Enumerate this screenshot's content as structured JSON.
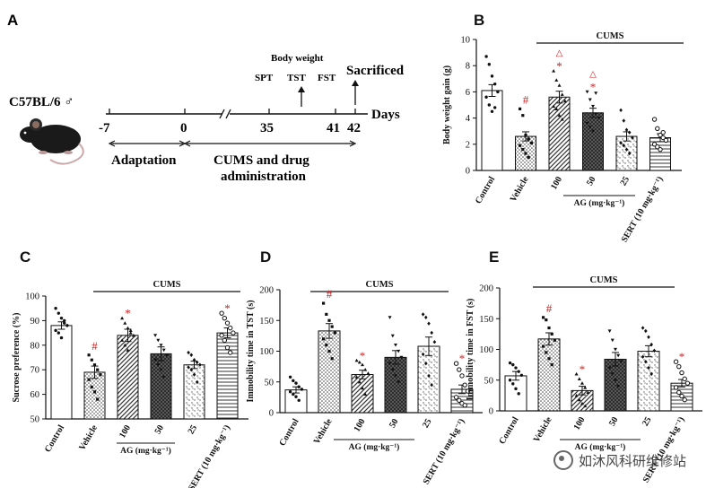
{
  "panel_a": {
    "letter": "A",
    "strain": "C57BL/6 ♂",
    "ticks": [
      "-7",
      "0",
      "35",
      "41",
      "42"
    ],
    "days_label": "Days",
    "body_weight": "Body weight",
    "tests": [
      "SPT",
      "TST",
      "FST"
    ],
    "sacrificed": "Sacrificed",
    "adaptation": "Adaptation",
    "cums_line1": "CUMS and drug",
    "cums_line2": "administration"
  },
  "shared": {
    "cums": "CUMS",
    "ag_label": "AG (mg·kg⁻¹)",
    "sig_hash": "#",
    "sig_star": "*",
    "sig_tri": "△",
    "colors": {
      "red": "#cc2222",
      "ink": "#111111"
    }
  },
  "chart_data": [
    {
      "panel": "B",
      "type": "bar",
      "categories": [
        "Control",
        "Vehicle",
        "100",
        "50",
        "25",
        "SERT (10 mg·kg⁻¹)"
      ],
      "values": [
        6.1,
        2.6,
        5.6,
        4.4,
        2.6,
        2.5
      ],
      "errors": [
        0.45,
        0.35,
        0.45,
        0.35,
        0.35,
        0.3
      ],
      "ylabel": "Body weight gain (g)",
      "ylim": [
        0,
        10
      ],
      "yticks": [
        0,
        2,
        4,
        6,
        8,
        10
      ],
      "sig": [
        "",
        "#",
        "△*",
        "△*",
        "",
        ""
      ],
      "points": [
        [
          8.7,
          8.1,
          7.2,
          6.6,
          6.0,
          5.6,
          5.0,
          4.5,
          4.8
        ],
        [
          4.7,
          4.2,
          2.7,
          2.4,
          2.1,
          1.9,
          1.6,
          1.3,
          1.0
        ],
        [
          7.6,
          6.9,
          6.5,
          5.8,
          5.3,
          4.9,
          4.7,
          4.2,
          3.9
        ],
        [
          6.0,
          5.4,
          4.9,
          4.3,
          4.0,
          3.6,
          3.3,
          3.0,
          5.9
        ],
        [
          4.6,
          3.8,
          3.1,
          2.9,
          2.5,
          2.1,
          1.9,
          1.6,
          1.3
        ],
        [
          3.9,
          3.2,
          2.7,
          2.5,
          2.3,
          2.0,
          1.8,
          1.6,
          2.9
        ]
      ]
    },
    {
      "panel": "C",
      "type": "bar",
      "categories": [
        "Control",
        "Vehicle",
        "100",
        "50",
        "25",
        "SERT (10 mg·kg⁻¹)"
      ],
      "values": [
        88,
        69,
        84,
        76.5,
        72,
        85
      ],
      "errors": [
        1.5,
        2.5,
        2.5,
        2.8,
        1.5,
        2.0
      ],
      "ylabel": "Sucrose preference (%)",
      "ylim": [
        50,
        100
      ],
      "yticks": [
        50,
        60,
        70,
        80,
        90,
        100
      ],
      "sig": [
        "",
        "#",
        "*",
        "",
        "",
        "*"
      ],
      "points": [
        [
          95,
          93,
          91,
          89,
          88,
          86,
          85,
          83,
          90
        ],
        [
          76,
          74,
          72,
          70,
          68,
          66,
          63,
          61,
          58
        ],
        [
          91,
          89,
          87,
          85,
          84,
          82,
          80,
          78,
          86
        ],
        [
          84,
          82,
          80,
          78,
          76,
          74,
          72,
          70,
          67
        ],
        [
          77,
          76,
          74,
          73,
          72,
          71,
          70,
          68,
          65
        ],
        [
          93,
          91,
          89,
          87,
          85,
          84,
          82,
          79,
          77
        ]
      ]
    },
    {
      "panel": "D",
      "type": "bar",
      "categories": [
        "Control",
        "Vehicle",
        "100",
        "50",
        "25",
        "SERT (10 mg·kg⁻¹)"
      ],
      "values": [
        37,
        133,
        62,
        90,
        108,
        38
      ],
      "errors": [
        5,
        12,
        7,
        11,
        15,
        7
      ],
      "ylabel": "Immobility time in TST (s)",
      "ylim": [
        0,
        200
      ],
      "yticks": [
        0,
        50,
        100,
        150,
        200
      ],
      "sig": [
        "",
        "#",
        "*",
        "",
        "",
        "*"
      ],
      "points": [
        [
          58,
          52,
          48,
          42,
          38,
          34,
          30,
          26,
          20
        ],
        [
          178,
          160,
          150,
          140,
          130,
          120,
          110,
          100,
          88
        ],
        [
          85,
          82,
          78,
          70,
          64,
          58,
          50,
          40,
          30
        ],
        [
          155,
          125,
          110,
          100,
          90,
          80,
          70,
          60,
          50
        ],
        [
          160,
          155,
          145,
          130,
          115,
          95,
          80,
          60,
          45
        ],
        [
          80,
          70,
          60,
          45,
          35,
          25,
          20,
          15,
          12
        ]
      ]
    },
    {
      "panel": "E",
      "type": "bar",
      "categories": [
        "Control",
        "Vehicle",
        "100",
        "50",
        "25",
        "SERT (10 mg·kg⁻¹)"
      ],
      "values": [
        57,
        117,
        33,
        84,
        97,
        45
      ],
      "errors": [
        7,
        10,
        7,
        11,
        9,
        6
      ],
      "ylabel": "Immobility time in FST (s)",
      "ylim": [
        0,
        200
      ],
      "yticks": [
        0,
        50,
        100,
        150,
        200
      ],
      "sig": [
        "",
        "#",
        "*",
        "",
        "",
        "*"
      ],
      "points": [
        [
          78,
          75,
          70,
          64,
          58,
          50,
          44,
          36,
          28
        ],
        [
          152,
          148,
          135,
          125,
          115,
          105,
          95,
          85,
          75
        ],
        [
          60,
          52,
          45,
          38,
          30,
          25,
          18,
          12,
          8
        ],
        [
          130,
          115,
          100,
          90,
          80,
          70,
          60,
          50,
          40
        ],
        [
          135,
          130,
          120,
          108,
          98,
          88,
          80,
          70,
          60
        ],
        [
          80,
          72,
          62,
          52,
          45,
          38,
          30,
          24,
          18
        ]
      ]
    }
  ],
  "watermark": "如沐风科研维修站"
}
